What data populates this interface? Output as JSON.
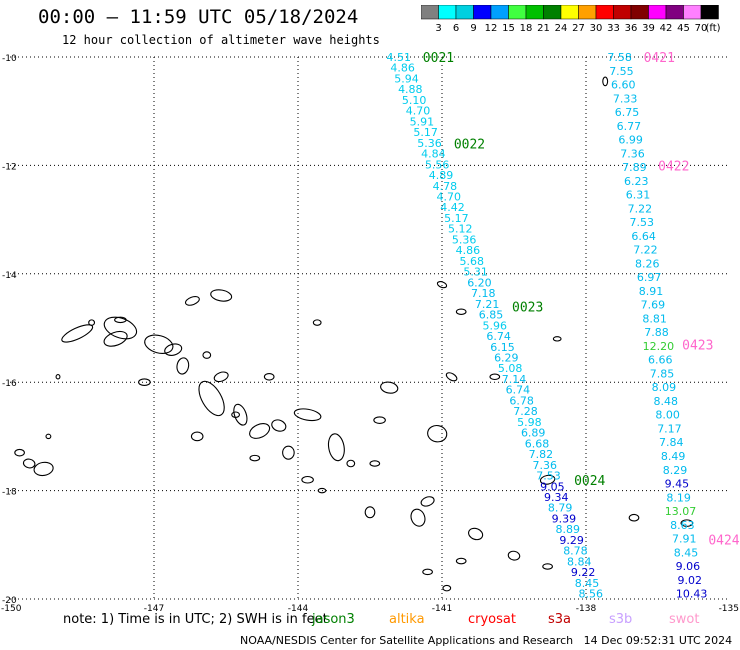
{
  "header": {
    "title": "00:00 – 11:59 UTC 05/18/2024",
    "subtitle": "12 hour collection of altimeter wave heights"
  },
  "colorbar": {
    "ticks": [
      "3",
      "6",
      "9",
      "12",
      "15",
      "18",
      "21",
      "24",
      "27",
      "30",
      "33",
      "36",
      "39",
      "42",
      "45",
      "70"
    ],
    "unit": "(ft)",
    "colors": [
      "#808080",
      "#00ffff",
      "#00d0e0",
      "#0000ff",
      "#00a0ff",
      "#40ff40",
      "#00c000",
      "#008000",
      "#ffff00",
      "#ffa000",
      "#ff0000",
      "#c00000",
      "#800000",
      "#ff00ff",
      "#800080",
      "#ff80ff",
      "#000000"
    ]
  },
  "chart_data": {
    "type": "scatter",
    "xlim": [
      -150,
      -135
    ],
    "ylim": [
      -20,
      -10
    ],
    "x_ticks": [
      -150,
      -147,
      -144,
      -141,
      -138,
      -135
    ],
    "x_tick_labels": [
      "-150",
      "-147",
      "-144",
      "-141",
      "-138",
      "-135"
    ],
    "y_ticks": [
      -10,
      -12,
      -14,
      -16,
      -18,
      -20
    ],
    "y_tick_labels": [
      "-10",
      "-12",
      "-14",
      "-16",
      "-18",
      "-20"
    ],
    "grid": "dotted",
    "value_colors": {
      "lt6": "#00ccee",
      "lt9": "#00bbee",
      "lt12": "#0000cc",
      "lt15": "#33cc33"
    },
    "tracks": [
      {
        "x_start": -141.9,
        "y_start": -10.0,
        "x_end": -137.9,
        "y_end": -19.9,
        "values": [
          "4.51",
          "4.86",
          "5.94",
          "4.88",
          "5.10",
          "4.70",
          "5.91",
          "5.17",
          "5.36",
          "4.84",
          "5.56",
          "4.89",
          "4.78",
          "4.70",
          "4.42",
          "5.17",
          "5.12",
          "5.36",
          "4.86",
          "5.68",
          "5.31",
          "6.20",
          "7.18",
          "7.21",
          "6.85",
          "5.96",
          "6.74",
          "6.15",
          "6.29",
          "5.08",
          "7.14",
          "6.74",
          "6.78",
          "7.28",
          "5.98",
          "6.89",
          "6.68",
          "7.82",
          "7.36",
          "7.53",
          "9.05",
          "9.34",
          "8.79",
          "9.39",
          "8.89",
          "9.29",
          "8.78",
          "8.84",
          "9.22",
          "8.45",
          "8.56"
        ],
        "time_labels": [
          {
            "text": "0021",
            "lat": -10.0,
            "color": "#008000"
          },
          {
            "text": "0022",
            "lat": -11.6,
            "color": "#008000"
          },
          {
            "text": "0023",
            "lat": -14.6,
            "color": "#008000"
          },
          {
            "text": "0024",
            "lat": -17.8,
            "color": "#008000"
          }
        ]
      },
      {
        "x_start": -137.3,
        "y_start": -10.0,
        "x_end": -135.8,
        "y_end": -19.9,
        "values": [
          "7.58",
          "7.55",
          "6.60",
          "7.33",
          "6.75",
          "6.77",
          "6.99",
          "7.36",
          "7.89",
          "6.23",
          "6.31",
          "7.22",
          "7.53",
          "6.64",
          "7.22",
          "8.26",
          "6.97",
          "8.91",
          "7.69",
          "8.81",
          "7.88",
          "12.20",
          "6.66",
          "7.85",
          "8.09",
          "8.48",
          "8.00",
          "7.17",
          "7.84",
          "8.49",
          "8.29",
          "9.45",
          "8.19",
          "13.07",
          "8.63",
          "7.91",
          "8.45",
          "9.06",
          "9.02",
          "10.43"
        ],
        "time_labels": [
          {
            "text": "0421",
            "lat": -10.0,
            "color": "#ff66cc"
          },
          {
            "text": "0422",
            "lat": -12.0,
            "color": "#ff66cc"
          },
          {
            "text": "0423",
            "lat": -15.3,
            "color": "#ff66cc"
          },
          {
            "text": "0424",
            "lat": -18.9,
            "color": "#ff66cc"
          }
        ]
      }
    ]
  },
  "footer": {
    "note": "note:  1) Time is in UTC;  2) SWH is in feet",
    "satellites": [
      {
        "name": "jason3",
        "color": "#008000"
      },
      {
        "name": "altika",
        "color": "#ff9900"
      },
      {
        "name": "cryosat",
        "color": "#ff0000"
      },
      {
        "name": "s3a",
        "color": "#c00000"
      },
      {
        "name": "s3b",
        "color": "#c8a0ff"
      },
      {
        "name": "swot",
        "color": "#ff99cc"
      }
    ],
    "credit": "NOAA/NESDIS Center for Satellite Applications and Research",
    "timestamp": "14 Dec 09:52:31 UTC 2024"
  }
}
